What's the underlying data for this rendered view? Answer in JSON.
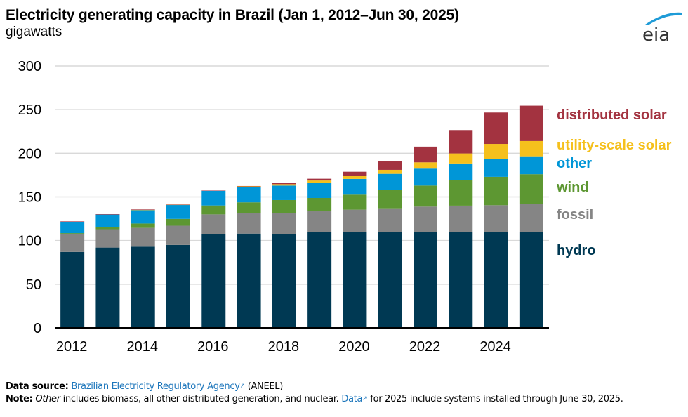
{
  "header": {
    "title": "Electricity generating capacity in Brazil (Jan 1, 2012–Jun 30, 2025)",
    "subtitle": "gigawatts",
    "logo_text": "eia"
  },
  "chart_data": {
    "type": "bar",
    "stacked": true,
    "title": "Electricity generating capacity in Brazil (Jan 1, 2012–Jun 30, 2025)",
    "ylabel": "gigawatts",
    "xlabel": "",
    "ylim": [
      0,
      300
    ],
    "yticks": [
      0,
      50,
      100,
      150,
      200,
      250,
      300
    ],
    "grid": true,
    "legend_placement": "right (inline labels)",
    "categories": [
      "2012",
      "2013",
      "2014",
      "2015",
      "2016",
      "2017",
      "2018",
      "2019",
      "2020",
      "2021",
      "2022",
      "2023",
      "2024",
      "2025"
    ],
    "xtick_labels": [
      "2012",
      "2014",
      "2016",
      "2018",
      "2020",
      "2022",
      "2024"
    ],
    "series": [
      {
        "name": "hydro",
        "color": "#003953",
        "values": [
          87,
          92,
          93,
          95,
          107,
          108,
          107.5,
          109.7,
          109.4,
          109.4,
          109.7,
          110,
          110,
          110
        ]
      },
      {
        "name": "fossil",
        "color": "#858585",
        "values": [
          20,
          21,
          21.5,
          22,
          23,
          23.5,
          24.2,
          23.8,
          26,
          27.6,
          29.2,
          30,
          30.5,
          32.1
        ]
      },
      {
        "name": "wind",
        "color": "#5d9732",
        "values": [
          1.5,
          2.3,
          5,
          7.8,
          10.2,
          12.3,
          14.7,
          15.3,
          17.2,
          21,
          24.1,
          29,
          32.5,
          33.9
        ]
      },
      {
        "name": "other",
        "color": "#0096d7",
        "values": [
          13,
          14.5,
          15.5,
          16,
          16.9,
          17.5,
          16.6,
          17.5,
          18,
          18.4,
          19.4,
          19.3,
          20.1,
          20.5
        ]
      },
      {
        "name": "utility-scale solar",
        "color": "#f5c01d",
        "values": [
          0,
          0,
          0.2,
          0.3,
          0,
          1,
          1.6,
          2.5,
          3.2,
          4.6,
          7.2,
          11.5,
          17.6,
          17.5
        ]
      },
      {
        "name": "distributed solar",
        "color": "#a33340",
        "values": [
          0.5,
          0.5,
          0.5,
          0.2,
          0.2,
          0.2,
          1.2,
          2,
          5,
          10.2,
          18,
          26.8,
          36,
          40.5
        ]
      }
    ],
    "legend": [
      {
        "name": "distributed solar",
        "color": "#a33340"
      },
      {
        "name": "utility-scale solar",
        "color": "#f5c01d"
      },
      {
        "name": "other",
        "color": "#0096d7"
      },
      {
        "name": "wind",
        "color": "#5d9732"
      },
      {
        "name": "fossil",
        "color": "#858585"
      },
      {
        "name": "hydro",
        "color": "#003953"
      }
    ]
  },
  "footer": {
    "source_label": "Data source:",
    "source_link": "Brazilian Electricity Regulatory Agency",
    "source_suffix": "(ANEEL)",
    "note_label": "Note:",
    "note_italic": "Other",
    "note_text": "includes biomass, all other distributed generation, and nuclear.",
    "note_link": "Data",
    "note_text2": "for 2025 include systems installed through June 30, 2025.",
    "external_link_icon": "↗"
  }
}
